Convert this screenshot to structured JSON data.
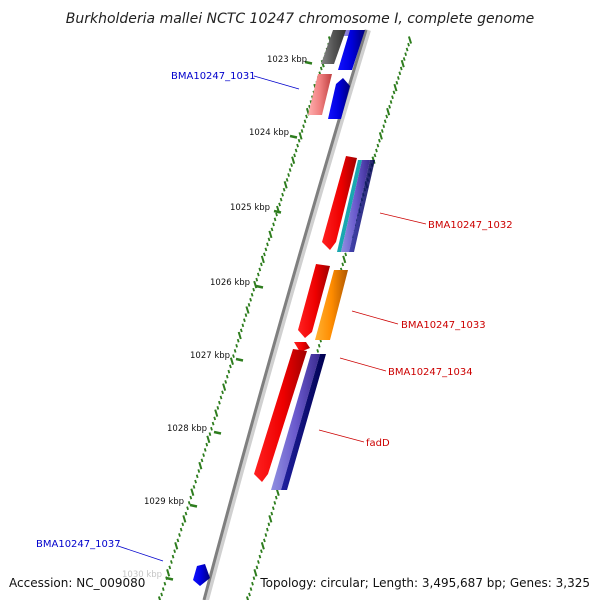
{
  "title": "Burkholderia mallei NCTC 10247 chromosome I, complete genome",
  "footer": {
    "accession": "Accession: NC_009080",
    "topology": "Topology: circular; Length: 3,495,687 bp; Genes: 3,325"
  },
  "colors": {
    "backbone": "#8a8a8a",
    "tick": "#2e7d1e",
    "forward_label": "#0000cc",
    "reverse_label": "#cc0000"
  },
  "kbp_markers": [
    {
      "label": "1023 kbp"
    },
    {
      "label": "1024 kbp"
    },
    {
      "label": "1025 kbp"
    },
    {
      "label": "1026 kbp"
    },
    {
      "label": "1027 kbp"
    },
    {
      "label": "1028 kbp"
    },
    {
      "label": "1029 kbp"
    },
    {
      "label": "1030 kbp"
    }
  ],
  "gene_labels": [
    {
      "text": "BMA10247_1031",
      "strand": "forward"
    },
    {
      "text": "BMA10247_1032",
      "strand": "reverse"
    },
    {
      "text": "BMA10247_1033",
      "strand": "reverse"
    },
    {
      "text": "BMA10247_1034",
      "strand": "reverse"
    },
    {
      "text": "fadD",
      "strand": "reverse"
    },
    {
      "text": "BMA10247_1037",
      "strand": "forward"
    }
  ]
}
